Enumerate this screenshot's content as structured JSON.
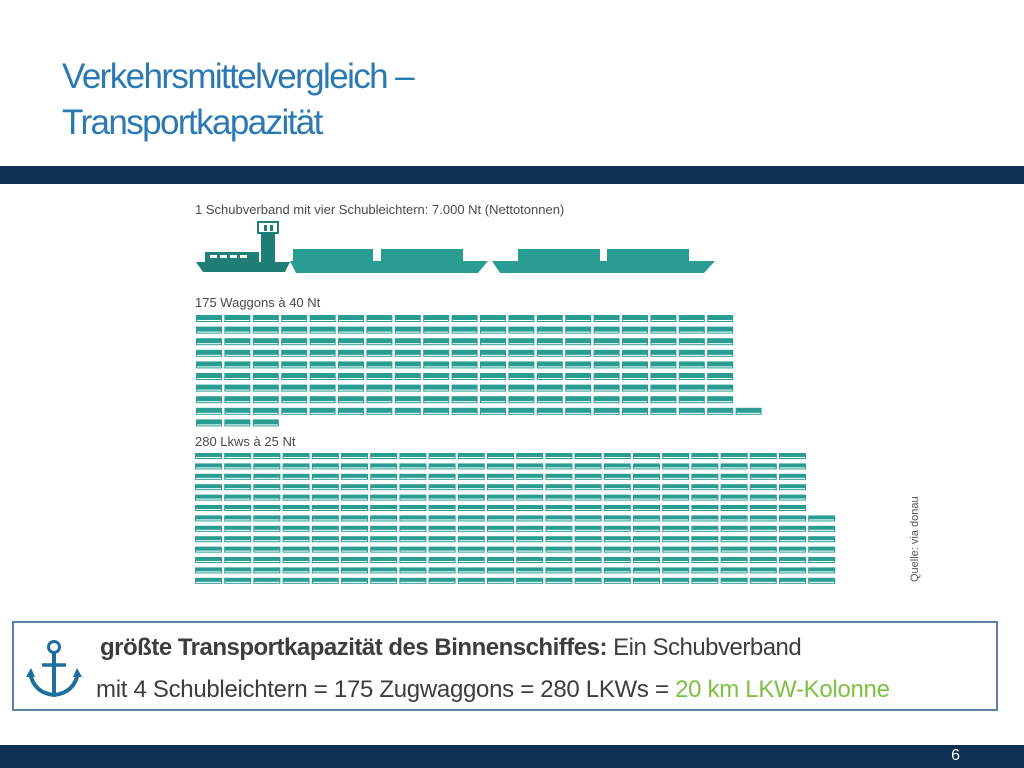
{
  "slide": {
    "title_line1": "Verkehrsmittelvergleich –",
    "title_line2": "Transportkapazität",
    "page_number": "6"
  },
  "figure": {
    "push_convoy_label": "1 Schubverband mit vier Schubleichtern: 7.000 Nt (Nettotonnen)",
    "wagons_label": "175 Waggons à 40 Nt",
    "trucks_label": "280 Lkws à 25 Nt",
    "source": "Quelle: via donau",
    "wagon_count": 175,
    "truck_count": 280,
    "colors": {
      "teal": "#2a9d93",
      "dark_teal": "#1f7f77"
    }
  },
  "callout": {
    "icon": "anchor-icon",
    "line1_bold": "größte Transportkapazität des Binnenschiffes:",
    "line1_rest": " Ein Schubverband",
    "line2_main": "mit  4 Schubleichtern = 175 Zugwaggons = 280 LKWs = ",
    "line2_highlight": "20 km LKW-Kolonne",
    "highlight_color": "#7cc242"
  }
}
